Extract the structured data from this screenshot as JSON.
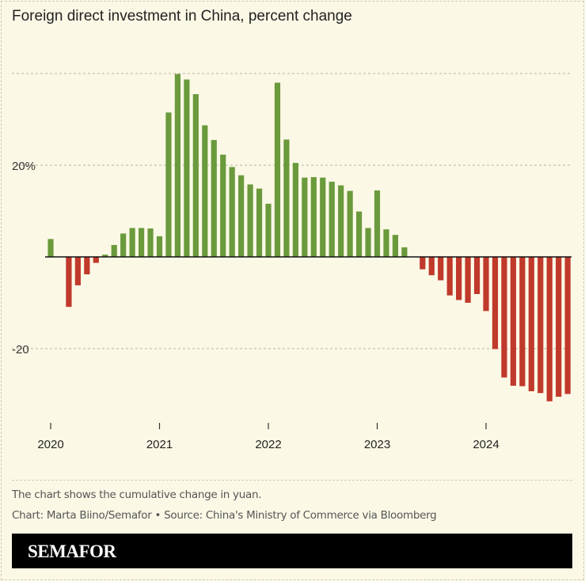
{
  "title": "Foreign direct investment in China, percent change",
  "footer": {
    "note": "The chart shows the cumulative change in yuan.",
    "credit": "Chart: Marta Biino/Semafor • Source: China's Ministry of Commerce via Bloomberg",
    "logo": "SEMAFOR"
  },
  "colors": {
    "positive": "#6a9a3c",
    "negative": "#c0392b",
    "background": "#fcf8e6"
  },
  "chart_data": {
    "type": "bar",
    "title": "Foreign direct investment in China, percent change",
    "xlabel": "",
    "ylabel": "",
    "ylim": [
      -35,
      40
    ],
    "grid": true,
    "y_ticks": [
      {
        "value": 40,
        "label": ""
      },
      {
        "value": 20,
        "label": "20%"
      },
      {
        "value": -20,
        "label": "-20"
      }
    ],
    "x_ticks": [
      "2020",
      "2021",
      "2022",
      "2023",
      "2024"
    ],
    "start": "2020-01",
    "frequency": "monthly",
    "values": [
      3.9,
      null,
      -10.9,
      -6.2,
      -3.8,
      -1.3,
      0.5,
      2.6,
      5.1,
      6.3,
      6.3,
      6.2,
      4.5,
      31.5,
      39.9,
      38.7,
      35.5,
      28.7,
      25.5,
      22.3,
      19.6,
      17.8,
      15.8,
      14.9,
      11.6,
      38.0,
      25.6,
      20.5,
      17.3,
      17.4,
      17.3,
      16.4,
      15.6,
      14.4,
      9.9,
      6.3,
      14.5,
      6.0,
      4.8,
      2.1,
      null,
      -2.7,
      -4.0,
      -5.1,
      -8.4,
      -9.4,
      -10.0,
      -8.1,
      -11.8,
      -20.1,
      -26.3,
      -28.1,
      -28.2,
      -29.3,
      -29.7,
      -31.5,
      -30.5,
      -29.9
    ]
  }
}
